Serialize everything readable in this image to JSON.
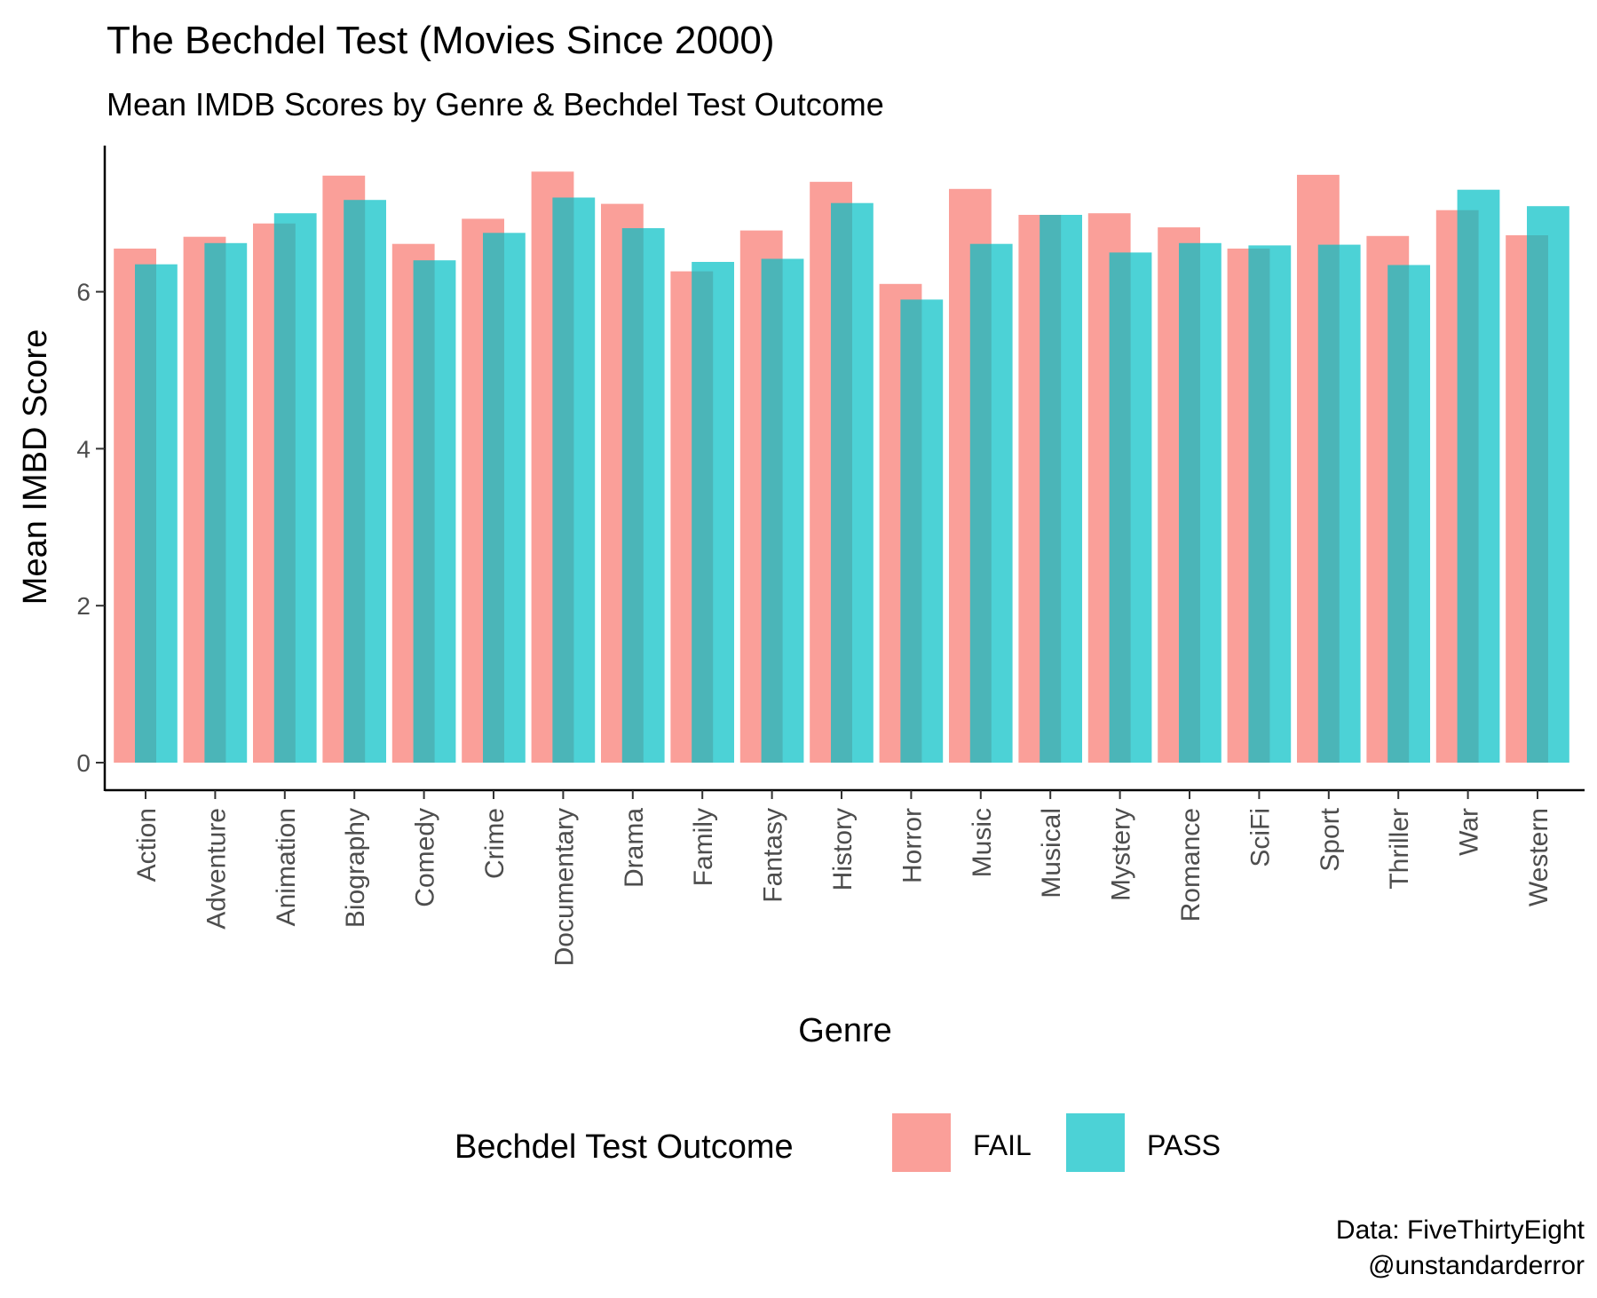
{
  "chart_data": {
    "type": "bar",
    "title": "The Bechdel Test (Movies Since 2000)",
    "subtitle": "Mean IMDB Scores by Genre & Bechdel Test Outcome",
    "xlabel": "Genre",
    "ylabel": "Mean IMBD Score",
    "ylim": [
      0,
      7.5
    ],
    "yticks": [
      "0",
      "2",
      "4",
      "6"
    ],
    "grid": false,
    "categories": [
      "Action",
      "Adventure",
      "Animation",
      "Biography",
      "Comedy",
      "Crime",
      "Documentary",
      "Drama",
      "Family",
      "Fantasy",
      "History",
      "Horror",
      "Music",
      "Musical",
      "Mystery",
      "Romance",
      "SciFi",
      "Sport",
      "Thriller",
      "War",
      "Western"
    ],
    "series": [
      {
        "name": "FAIL",
        "color": "#F8766D",
        "values": [
          6.55,
          6.7,
          6.87,
          7.48,
          6.61,
          6.93,
          7.53,
          7.12,
          6.26,
          6.78,
          7.4,
          6.1,
          7.31,
          6.98,
          7.0,
          6.82,
          6.55,
          7.49,
          6.71,
          7.04,
          6.72
        ]
      },
      {
        "name": "PASS",
        "color": "#00BFC4",
        "values": [
          6.35,
          6.62,
          7.0,
          7.17,
          6.4,
          6.75,
          7.2,
          6.81,
          6.38,
          6.42,
          7.13,
          5.9,
          6.61,
          6.98,
          6.5,
          6.62,
          6.59,
          6.6,
          6.34,
          7.3,
          7.09
        ]
      }
    ],
    "legend": {
      "title": "Bechdel Test Outcome",
      "position": "bottom"
    },
    "caption": [
      "Data: FiveThirtyEight",
      "@unstandarderror"
    ]
  }
}
